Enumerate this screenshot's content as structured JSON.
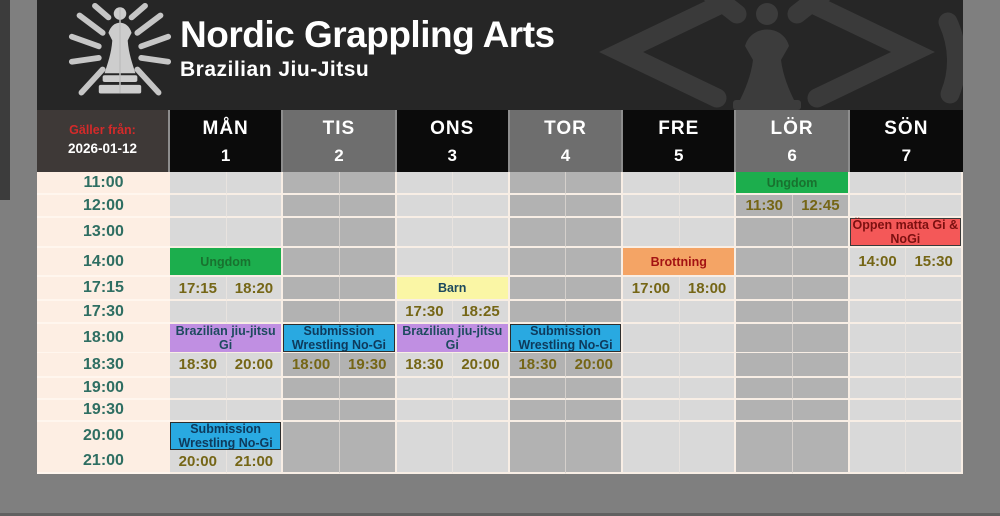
{
  "brand": {
    "title": "Nordic Grappling Arts",
    "subtitle": "Brazilian Jiu-Jitsu",
    "logo": "spider-chess-king"
  },
  "valid_from": {
    "label": "Gäller från:",
    "date": "2026-01-12"
  },
  "schedule": {
    "times": [
      "11:00",
      "12:00",
      "13:00",
      "14:00",
      "17:15",
      "17:30",
      "18:00",
      "18:30",
      "19:00",
      "19:30",
      "20:00",
      "21:00"
    ],
    "days": [
      {
        "name": "MÅN",
        "number": "1",
        "header_tone": "black",
        "column_tone": "light"
      },
      {
        "name": "TIS",
        "number": "2",
        "header_tone": "gray",
        "column_tone": "dark"
      },
      {
        "name": "ONS",
        "number": "3",
        "header_tone": "black",
        "column_tone": "light"
      },
      {
        "name": "TOR",
        "number": "4",
        "header_tone": "gray",
        "column_tone": "dark"
      },
      {
        "name": "FRE",
        "number": "5",
        "header_tone": "black",
        "column_tone": "light"
      },
      {
        "name": "LÖR",
        "number": "6",
        "header_tone": "gray",
        "column_tone": "dark"
      },
      {
        "name": "SÖN",
        "number": "7",
        "header_tone": "black",
        "column_tone": "light"
      }
    ],
    "classes": [
      {
        "day": "MÅN",
        "time": "14:00",
        "label": "Ungdom",
        "color_key": "green"
      },
      {
        "day": "MÅN",
        "time": "18:00",
        "label": "Brazilian jiu-jitsu Gi",
        "color_key": "purple"
      },
      {
        "day": "MÅN",
        "time": "20:00",
        "label": "Submission Wrestling No-Gi",
        "color_key": "blue"
      },
      {
        "day": "TIS",
        "time": "18:00",
        "label": "Submission Wrestling No-Gi",
        "color_key": "blue"
      },
      {
        "day": "ONS",
        "time": "17:15",
        "label": "Barn",
        "color_key": "yellow"
      },
      {
        "day": "ONS",
        "time": "18:00",
        "label": "Brazilian jiu-jitsu Gi",
        "color_key": "purple"
      },
      {
        "day": "TOR",
        "time": "18:00",
        "label": "Submission Wrestling No-Gi",
        "color_key": "blue"
      },
      {
        "day": "FRE",
        "time": "14:00",
        "label": "Brottning",
        "color_key": "orange"
      },
      {
        "day": "LÖR",
        "time": "11:00",
        "label": "Ungdom",
        "color_key": "green"
      },
      {
        "day": "SÖN",
        "time": "13:00",
        "label": "Öppen matta Gi & NoGi",
        "color_key": "red"
      }
    ],
    "time_ranges": [
      {
        "day": "MÅN",
        "time": "17:15",
        "start": "17:15",
        "end": "18:20"
      },
      {
        "day": "MÅN",
        "time": "18:30",
        "start": "18:30",
        "end": "20:00"
      },
      {
        "day": "MÅN",
        "time": "21:00",
        "start": "20:00",
        "end": "21:00"
      },
      {
        "day": "TIS",
        "time": "18:30",
        "start": "18:00",
        "end": "19:30"
      },
      {
        "day": "ONS",
        "time": "17:30",
        "start": "17:30",
        "end": "18:25"
      },
      {
        "day": "ONS",
        "time": "18:30",
        "start": "18:30",
        "end": "20:00"
      },
      {
        "day": "TOR",
        "time": "18:30",
        "start": "18:30",
        "end": "20:00"
      },
      {
        "day": "FRE",
        "time": "17:15",
        "start": "17:00",
        "end": "18:00"
      },
      {
        "day": "LÖR",
        "time": "12:00",
        "start": "11:30",
        "end": "12:45"
      },
      {
        "day": "SÖN",
        "time": "14:00",
        "start": "14:00",
        "end": "15:30"
      }
    ]
  },
  "palette": {
    "green": {
      "bg": "#1cae4d",
      "text": "#19712f"
    },
    "yellow": {
      "bg": "#faf6a5",
      "text": "#1d4a5e"
    },
    "purple": {
      "bg": "#c08fe2",
      "text": "#1d4a5e"
    },
    "blue": {
      "bg": "#29a9e1",
      "text": "#0e3a5c",
      "border": "#2d2d2d"
    },
    "orange": {
      "bg": "#f4a465",
      "text": "#a31313",
      "border": "#c57f3f"
    },
    "red": {
      "bg": "#f45858",
      "text": "#7c1010",
      "border": "#3a3a3a"
    }
  },
  "colors": {
    "header_bg": "#262626",
    "page_bg": "#7f7f7f",
    "time_column_bg": "#fdeee3",
    "time_text": "#2e6e62",
    "range_text": "#756616",
    "valid_from_red": "#d42a2a",
    "day_header_black": "#0b0b0b",
    "day_header_gray": "#6e6e6e",
    "column_light": "#d9d9d9",
    "column_dark": "#b2b2b2"
  }
}
